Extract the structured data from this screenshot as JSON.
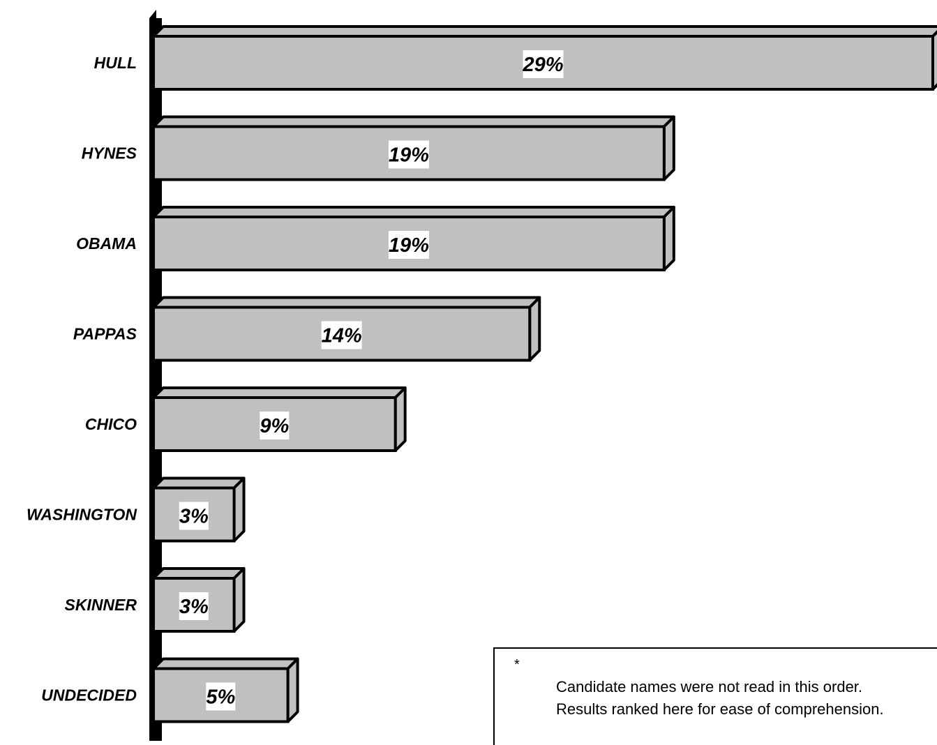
{
  "chart_data": {
    "type": "bar",
    "orientation": "horizontal",
    "categories": [
      "HULL",
      "HYNES",
      "OBAMA",
      "PAPPAS",
      "CHICO",
      "WASHINGTON",
      "SKINNER",
      "UNDECIDED"
    ],
    "values": [
      29,
      19,
      19,
      14,
      9,
      3,
      3,
      5
    ],
    "value_labels": [
      "29%",
      "19%",
      "19%",
      "14%",
      "9%",
      "3%",
      "3%",
      "5%"
    ],
    "xlim": [
      0,
      29
    ],
    "grid": false,
    "legend": "none",
    "colors": {
      "bar_fill": "#c0c0c0",
      "bar_outline": "#000000",
      "axis": "#000000"
    }
  },
  "note": {
    "marker": "*",
    "line1": "Candidate names were not read in this order.",
    "line2": "Results ranked here for ease of comprehension."
  }
}
